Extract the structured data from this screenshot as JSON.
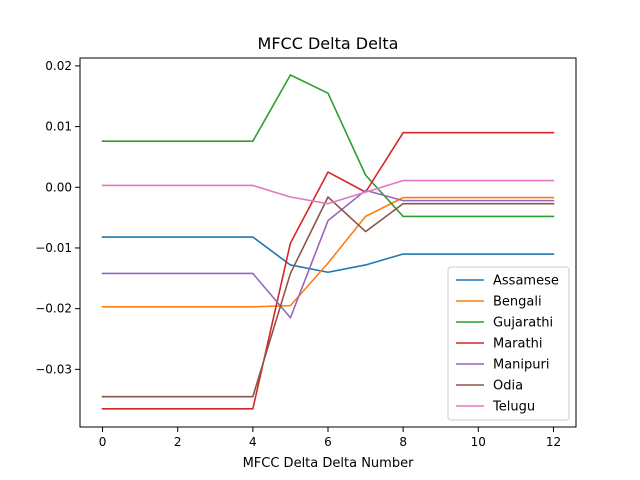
{
  "chart_data": {
    "type": "line",
    "title": "MFCC Delta Delta",
    "xlabel": "MFCC Delta Delta Number",
    "ylabel": "",
    "xlim": [
      -0.6,
      12.6
    ],
    "ylim": [
      -0.0395,
      0.0213
    ],
    "xticks": [
      0,
      2,
      4,
      6,
      8,
      10,
      12
    ],
    "xtick_labels": [
      "0",
      "2",
      "4",
      "6",
      "8",
      "10",
      "12"
    ],
    "yticks": [
      0.02,
      0.01,
      0.0,
      -0.01,
      -0.02,
      -0.03
    ],
    "ytick_labels": [
      "0.02",
      "0.01",
      "0.00",
      "−0.01",
      "−0.02",
      "−0.03"
    ],
    "grid": false,
    "legend_position": "lower-right",
    "x": [
      0,
      1,
      2,
      3,
      4,
      5,
      6,
      7,
      8,
      9,
      10,
      11,
      12
    ],
    "series": [
      {
        "name": "Assamese",
        "color": "#1f77b4",
        "values": [
          -0.0082,
          -0.0082,
          -0.0082,
          -0.0082,
          -0.0082,
          -0.0128,
          -0.014,
          -0.0128,
          -0.011,
          -0.011,
          -0.011,
          -0.011,
          -0.011
        ]
      },
      {
        "name": "Bengali",
        "color": "#ff7f0e",
        "values": [
          -0.0197,
          -0.0197,
          -0.0197,
          -0.0197,
          -0.0197,
          -0.0195,
          -0.0125,
          -0.0048,
          -0.0017,
          -0.0017,
          -0.0017,
          -0.0017,
          -0.0017
        ]
      },
      {
        "name": "Gujarathi",
        "color": "#2ca02c",
        "values": [
          0.0076,
          0.0076,
          0.0076,
          0.0076,
          0.0076,
          0.0185,
          0.0155,
          0.002,
          -0.0048,
          -0.0048,
          -0.0048,
          -0.0048,
          -0.0048
        ]
      },
      {
        "name": "Marathi",
        "color": "#d62728",
        "values": [
          -0.0365,
          -0.0365,
          -0.0365,
          -0.0365,
          -0.0365,
          -0.0092,
          0.0025,
          -0.0008,
          0.009,
          0.009,
          0.009,
          0.009,
          0.009
        ]
      },
      {
        "name": "Manipuri",
        "color": "#9467bd",
        "values": [
          -0.0142,
          -0.0142,
          -0.0142,
          -0.0142,
          -0.0142,
          -0.0215,
          -0.0055,
          -0.0005,
          -0.0022,
          -0.0022,
          -0.0022,
          -0.0022,
          -0.0022
        ]
      },
      {
        "name": "Odia",
        "color": "#8c564b",
        "values": [
          -0.0345,
          -0.0345,
          -0.0345,
          -0.0345,
          -0.0345,
          -0.0142,
          -0.0016,
          -0.0073,
          -0.0027,
          -0.0027,
          -0.0027,
          -0.0027,
          -0.0027
        ]
      },
      {
        "name": "Telugu",
        "color": "#e377c2",
        "values": [
          0.0003,
          0.0003,
          0.0003,
          0.0003,
          0.0003,
          -0.0016,
          -0.0027,
          -0.0008,
          0.0011,
          0.0011,
          0.0011,
          0.0011,
          0.0011
        ]
      }
    ]
  }
}
